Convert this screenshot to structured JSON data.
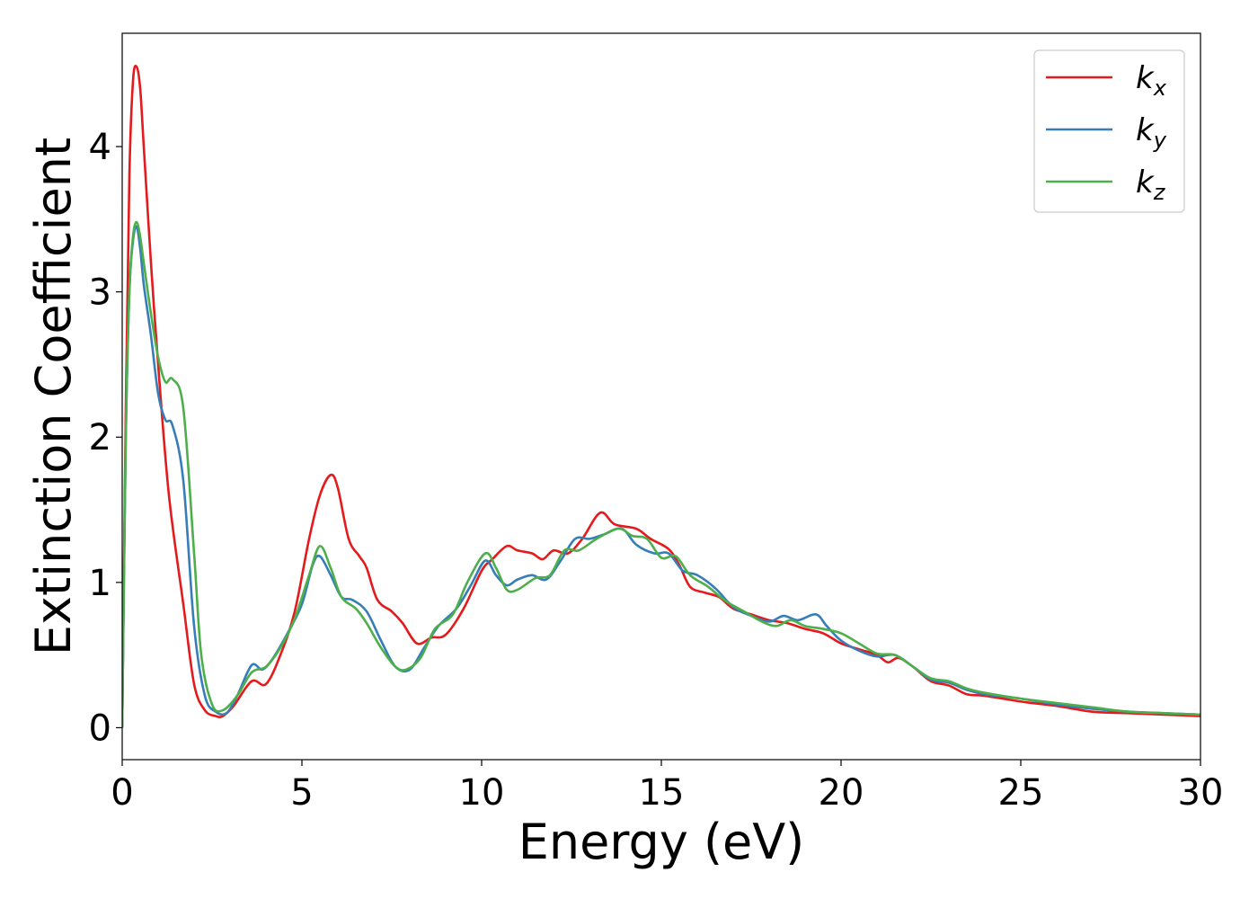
{
  "chart_data": {
    "type": "line",
    "title": "",
    "xlabel": "Energy (eV)",
    "ylabel": "Extinction Coefficient",
    "xlim": [
      0,
      30
    ],
    "ylim": [
      -0.22,
      4.78
    ],
    "xticks": [
      0,
      5,
      10,
      15,
      20,
      25,
      30
    ],
    "yticks": [
      0,
      1,
      2,
      3,
      4
    ],
    "grid": false,
    "legend_position": "top-right",
    "series": [
      {
        "name": "k",
        "subscript": "x",
        "color": "#e41a1c",
        "points": [
          [
            0,
            0.0
          ],
          [
            0.1,
            2.2
          ],
          [
            0.2,
            3.8
          ],
          [
            0.3,
            4.45
          ],
          [
            0.4,
            4.55
          ],
          [
            0.5,
            4.4
          ],
          [
            0.6,
            4.0
          ],
          [
            0.8,
            3.2
          ],
          [
            1.0,
            2.5
          ],
          [
            1.3,
            1.6
          ],
          [
            1.7,
            0.85
          ],
          [
            2.0,
            0.3
          ],
          [
            2.3,
            0.12
          ],
          [
            2.6,
            0.08
          ],
          [
            2.8,
            0.08
          ],
          [
            3.1,
            0.15
          ],
          [
            3.6,
            0.32
          ],
          [
            4.0,
            0.3
          ],
          [
            4.4,
            0.5
          ],
          [
            4.8,
            0.8
          ],
          [
            5.2,
            1.3
          ],
          [
            5.5,
            1.6
          ],
          [
            5.8,
            1.74
          ],
          [
            6.0,
            1.65
          ],
          [
            6.3,
            1.3
          ],
          [
            6.6,
            1.18
          ],
          [
            6.8,
            1.1
          ],
          [
            7.1,
            0.88
          ],
          [
            7.5,
            0.8
          ],
          [
            7.8,
            0.72
          ],
          [
            8.2,
            0.58
          ],
          [
            8.6,
            0.62
          ],
          [
            9.0,
            0.64
          ],
          [
            9.5,
            0.82
          ],
          [
            10.0,
            1.08
          ],
          [
            10.3,
            1.16
          ],
          [
            10.7,
            1.25
          ],
          [
            11.0,
            1.22
          ],
          [
            11.4,
            1.2
          ],
          [
            11.7,
            1.16
          ],
          [
            12.0,
            1.22
          ],
          [
            12.4,
            1.2
          ],
          [
            12.8,
            1.3
          ],
          [
            13.3,
            1.48
          ],
          [
            13.7,
            1.4
          ],
          [
            14.3,
            1.37
          ],
          [
            14.7,
            1.3
          ],
          [
            15.2,
            1.23
          ],
          [
            15.5,
            1.12
          ],
          [
            15.8,
            0.97
          ],
          [
            16.2,
            0.93
          ],
          [
            16.6,
            0.9
          ],
          [
            17.0,
            0.82
          ],
          [
            17.5,
            0.78
          ],
          [
            18.0,
            0.74
          ],
          [
            18.5,
            0.72
          ],
          [
            19.0,
            0.68
          ],
          [
            19.5,
            0.65
          ],
          [
            20.0,
            0.58
          ],
          [
            20.5,
            0.54
          ],
          [
            21.0,
            0.5
          ],
          [
            21.3,
            0.45
          ],
          [
            21.6,
            0.48
          ],
          [
            22.0,
            0.42
          ],
          [
            22.5,
            0.32
          ],
          [
            23.0,
            0.29
          ],
          [
            23.5,
            0.23
          ],
          [
            24.0,
            0.22
          ],
          [
            25.0,
            0.18
          ],
          [
            26.0,
            0.15
          ],
          [
            27.0,
            0.11
          ],
          [
            28.0,
            0.1
          ],
          [
            29.0,
            0.09
          ],
          [
            30.0,
            0.08
          ]
        ]
      },
      {
        "name": "k",
        "subscript": "y",
        "color": "#377eb8",
        "points": [
          [
            0,
            0.0
          ],
          [
            0.1,
            2.0
          ],
          [
            0.2,
            3.0
          ],
          [
            0.3,
            3.35
          ],
          [
            0.4,
            3.45
          ],
          [
            0.5,
            3.3
          ],
          [
            0.6,
            3.05
          ],
          [
            0.8,
            2.7
          ],
          [
            1.0,
            2.3
          ],
          [
            1.2,
            2.12
          ],
          [
            1.4,
            2.08
          ],
          [
            1.7,
            1.7
          ],
          [
            2.0,
            0.7
          ],
          [
            2.3,
            0.22
          ],
          [
            2.6,
            0.11
          ],
          [
            2.9,
            0.1
          ],
          [
            3.2,
            0.22
          ],
          [
            3.6,
            0.43
          ],
          [
            3.9,
            0.4
          ],
          [
            4.2,
            0.48
          ],
          [
            4.6,
            0.65
          ],
          [
            5.0,
            0.85
          ],
          [
            5.3,
            1.12
          ],
          [
            5.5,
            1.18
          ],
          [
            5.8,
            1.05
          ],
          [
            6.1,
            0.9
          ],
          [
            6.4,
            0.88
          ],
          [
            6.8,
            0.8
          ],
          [
            7.2,
            0.6
          ],
          [
            7.6,
            0.42
          ],
          [
            8.0,
            0.4
          ],
          [
            8.4,
            0.55
          ],
          [
            8.8,
            0.7
          ],
          [
            9.3,
            0.82
          ],
          [
            9.7,
            0.98
          ],
          [
            10.1,
            1.15
          ],
          [
            10.4,
            1.05
          ],
          [
            10.7,
            0.98
          ],
          [
            11.0,
            1.02
          ],
          [
            11.4,
            1.05
          ],
          [
            11.8,
            1.02
          ],
          [
            12.2,
            1.15
          ],
          [
            12.6,
            1.3
          ],
          [
            13.0,
            1.3
          ],
          [
            13.4,
            1.33
          ],
          [
            13.9,
            1.37
          ],
          [
            14.3,
            1.26
          ],
          [
            14.8,
            1.2
          ],
          [
            15.2,
            1.2
          ],
          [
            15.6,
            1.08
          ],
          [
            16.0,
            1.05
          ],
          [
            16.5,
            0.96
          ],
          [
            17.0,
            0.83
          ],
          [
            17.5,
            0.77
          ],
          [
            18.0,
            0.73
          ],
          [
            18.4,
            0.77
          ],
          [
            18.8,
            0.74
          ],
          [
            19.3,
            0.78
          ],
          [
            19.6,
            0.7
          ],
          [
            20.0,
            0.6
          ],
          [
            20.5,
            0.53
          ],
          [
            21.0,
            0.49
          ],
          [
            21.5,
            0.5
          ],
          [
            22.0,
            0.42
          ],
          [
            22.5,
            0.33
          ],
          [
            23.0,
            0.31
          ],
          [
            23.5,
            0.26
          ],
          [
            24.0,
            0.23
          ],
          [
            25.0,
            0.2
          ],
          [
            26.0,
            0.16
          ],
          [
            27.0,
            0.13
          ],
          [
            28.0,
            0.11
          ],
          [
            29.0,
            0.1
          ],
          [
            30.0,
            0.09
          ]
        ]
      },
      {
        "name": "k",
        "subscript": "z",
        "color": "#4daf4a",
        "points": [
          [
            0,
            0.0
          ],
          [
            0.1,
            2.0
          ],
          [
            0.2,
            3.0
          ],
          [
            0.3,
            3.38
          ],
          [
            0.4,
            3.48
          ],
          [
            0.5,
            3.38
          ],
          [
            0.6,
            3.2
          ],
          [
            0.8,
            2.85
          ],
          [
            1.0,
            2.55
          ],
          [
            1.2,
            2.38
          ],
          [
            1.4,
            2.4
          ],
          [
            1.7,
            2.2
          ],
          [
            2.0,
            1.2
          ],
          [
            2.2,
            0.5
          ],
          [
            2.5,
            0.16
          ],
          [
            2.8,
            0.12
          ],
          [
            3.2,
            0.22
          ],
          [
            3.6,
            0.38
          ],
          [
            4.0,
            0.42
          ],
          [
            4.4,
            0.55
          ],
          [
            4.8,
            0.75
          ],
          [
            5.2,
            1.05
          ],
          [
            5.5,
            1.25
          ],
          [
            5.8,
            1.1
          ],
          [
            6.1,
            0.9
          ],
          [
            6.5,
            0.82
          ],
          [
            6.8,
            0.72
          ],
          [
            7.2,
            0.55
          ],
          [
            7.6,
            0.42
          ],
          [
            7.9,
            0.4
          ],
          [
            8.3,
            0.48
          ],
          [
            8.7,
            0.68
          ],
          [
            9.2,
            0.78
          ],
          [
            9.6,
            1.0
          ],
          [
            10.1,
            1.2
          ],
          [
            10.4,
            1.1
          ],
          [
            10.7,
            0.95
          ],
          [
            11.0,
            0.95
          ],
          [
            11.5,
            1.03
          ],
          [
            11.9,
            1.05
          ],
          [
            12.3,
            1.22
          ],
          [
            12.7,
            1.22
          ],
          [
            13.2,
            1.3
          ],
          [
            13.8,
            1.37
          ],
          [
            14.2,
            1.32
          ],
          [
            14.6,
            1.3
          ],
          [
            15.0,
            1.17
          ],
          [
            15.4,
            1.18
          ],
          [
            15.8,
            1.05
          ],
          [
            16.3,
            0.97
          ],
          [
            16.8,
            0.87
          ],
          [
            17.3,
            0.8
          ],
          [
            17.8,
            0.73
          ],
          [
            18.2,
            0.7
          ],
          [
            18.6,
            0.74
          ],
          [
            19.0,
            0.7
          ],
          [
            19.5,
            0.68
          ],
          [
            20.0,
            0.65
          ],
          [
            20.5,
            0.58
          ],
          [
            21.0,
            0.51
          ],
          [
            21.5,
            0.5
          ],
          [
            22.0,
            0.42
          ],
          [
            22.5,
            0.34
          ],
          [
            23.0,
            0.32
          ],
          [
            23.5,
            0.27
          ],
          [
            24.0,
            0.24
          ],
          [
            25.0,
            0.2
          ],
          [
            26.0,
            0.17
          ],
          [
            27.0,
            0.14
          ],
          [
            28.0,
            0.11
          ],
          [
            29.0,
            0.1
          ],
          [
            30.0,
            0.09
          ]
        ]
      }
    ]
  }
}
